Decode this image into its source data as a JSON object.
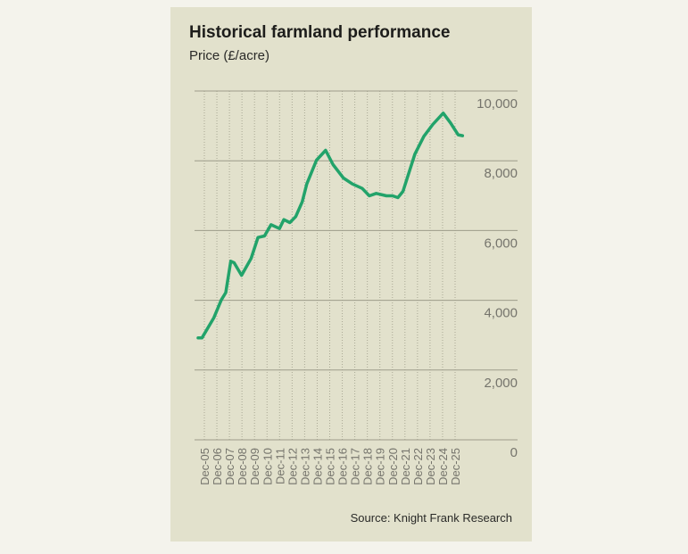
{
  "chart_data": {
    "type": "line",
    "title": "Historical farmland performance",
    "subtitle": "Price (£/acre)",
    "source": "Source: Knight Frank Research",
    "xlabel": "",
    "ylabel": "Price (£/acre)",
    "ylim": [
      0,
      10000
    ],
    "yticks": [
      0,
      2000,
      4000,
      6000,
      8000,
      10000
    ],
    "ytick_labels": [
      "0",
      "2,000",
      "4,000",
      "6,000",
      "8,000",
      "10,000"
    ],
    "xtick_labels": [
      "Dec-05",
      "Dec-06",
      "Dec-07",
      "Dec-08",
      "Dec-09",
      "Dec-10",
      "Dec-11",
      "Dec-12",
      "Dec-13",
      "Dec-14",
      "Dec-15",
      "Dec-16",
      "Dec-17",
      "Dec-18",
      "Dec-19",
      "Dec-20",
      "Dec-21",
      "Dec-22",
      "Dec-23",
      "Dec-24",
      "Dec-25"
    ],
    "grid": true,
    "y_axis_side": "right",
    "line_color": "#22a36a",
    "series": [
      {
        "name": "Price (£/acre)",
        "x": [
          2005.42,
          2005.73,
          2006.68,
          2007.27,
          2007.63,
          2008.03,
          2008.3,
          2008.89,
          2009.65,
          2010.2,
          2010.72,
          2011.24,
          2011.91,
          2012.26,
          2012.74,
          2013.21,
          2013.73,
          2014.09,
          2014.87,
          2015.59,
          2016.18,
          2017.01,
          2017.73,
          2018.51,
          2019.08,
          2019.63,
          2020.45,
          2020.93,
          2021.36,
          2021.76,
          2022.71,
          2023.43,
          2024.14,
          2024.97,
          2025.56,
          2026.16,
          2026.51
        ],
        "values": [
          2920,
          2920,
          3500,
          4010,
          4220,
          5120,
          5075,
          4717,
          5200,
          5800,
          5843,
          6167,
          6056,
          6312,
          6227,
          6398,
          6824,
          7336,
          8018,
          8300,
          7890,
          7506,
          7336,
          7208,
          6995,
          7063,
          6995,
          6995,
          6943,
          7123,
          8189,
          8700,
          9042,
          9366,
          9084,
          8743,
          8718
        ]
      }
    ]
  }
}
